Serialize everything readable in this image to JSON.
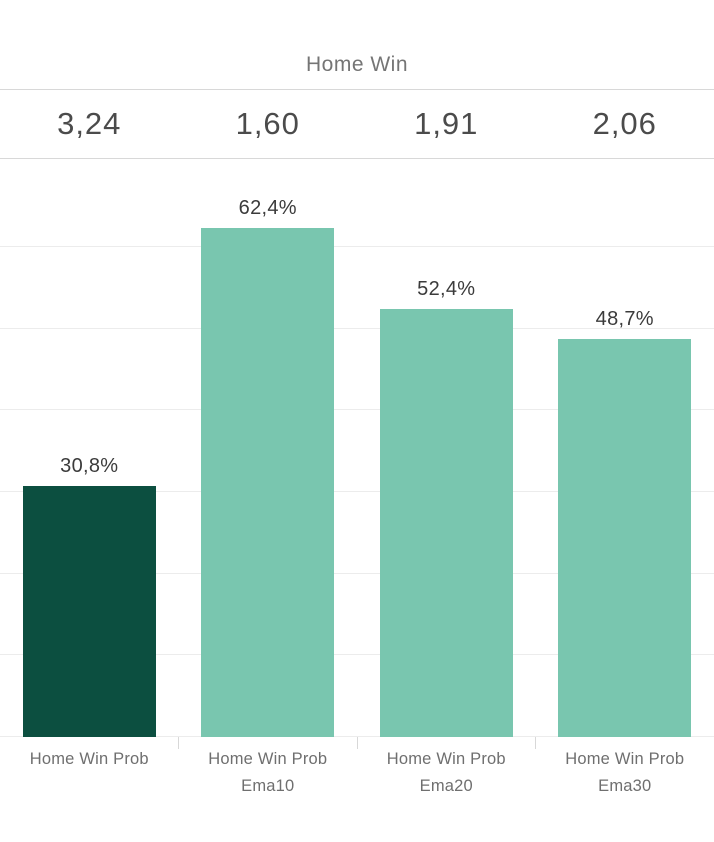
{
  "header": {
    "title": "Home Win"
  },
  "odds_row": {
    "values": [
      "3,24",
      "1,60",
      "1,91",
      "2,06"
    ]
  },
  "chart_data": {
    "type": "bar",
    "title": "Home Win",
    "categories": [
      "Home Win Prob",
      "Home Win Prob Ema10",
      "Home Win Prob Ema20",
      "Home Win Prob Ema30"
    ],
    "category_lines": [
      {
        "line1": "Home Win Prob",
        "line2": ""
      },
      {
        "line1": "Home Win Prob",
        "line2": "Ema10"
      },
      {
        "line1": "Home Win Prob",
        "line2": "Ema20"
      },
      {
        "line1": "Home Win Prob",
        "line2": "Ema30"
      }
    ],
    "values": [
      30.8,
      62.4,
      52.4,
      48.7
    ],
    "value_labels": [
      "30,8%",
      "62,4%",
      "52,4%",
      "48,7%"
    ],
    "odds_header": [
      "3,24",
      "1,60",
      "1,91",
      "2,06"
    ],
    "bar_colors": [
      "#0c4f40",
      "#79c6af",
      "#79c6af",
      "#79c6af"
    ],
    "xlabel": "",
    "ylabel": "",
    "ylim": [
      0,
      70.8
    ],
    "grid": true,
    "gridline_step_pct": 10,
    "legend": "none",
    "decimal_separator": ","
  },
  "colors": {
    "accent_dark": "#0c4f40",
    "accent_light": "#79c6af",
    "title_text": "#757575",
    "odds_text": "#4b4b4b",
    "value_text": "#3b3b3b",
    "axis_text": "#6f6f6f",
    "divider": "#d8d8d8",
    "gridline": "#ececec"
  }
}
